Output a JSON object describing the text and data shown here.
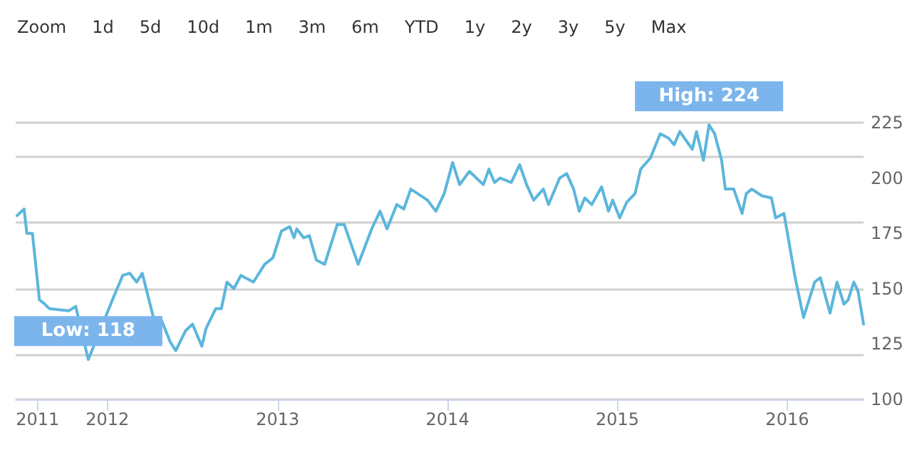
{
  "chart_data": {
    "type": "line",
    "annotations": [
      "Zoom",
      "1d",
      "5d",
      "10d",
      "1m",
      "3m",
      "6m",
      "YTD",
      "1y",
      "2y",
      "3y",
      "5y",
      "Max",
      {
        "text": "High: 224",
        "x": "2015-07-17",
        "y": 224
      },
      {
        "text": "Low: 118",
        "x": "2011-11-21",
        "y": 118
      }
    ],
    "x": [
      "2011-06-21",
      "2011-07-06",
      "2011-07-12",
      "2011-07-24",
      "2011-08-08",
      "2011-08-20",
      "2011-08-29",
      "2011-10-10",
      "2011-10-25",
      "2011-11-21",
      "2012-01-16",
      "2012-02-03",
      "2012-02-18",
      "2012-03-04",
      "2012-03-16",
      "2012-04-09",
      "2012-04-24",
      "2012-05-15",
      "2012-05-27",
      "2012-06-17",
      "2012-07-02",
      "2012-07-22",
      "2012-07-31",
      "2012-08-21",
      "2012-09-02",
      "2012-09-14",
      "2012-09-29",
      "2012-10-14",
      "2012-11-10",
      "2012-12-04",
      "2012-12-22",
      "2013-01-09",
      "2013-01-27",
      "2013-02-05",
      "2013-02-11",
      "2013-02-26",
      "2013-03-10",
      "2013-03-25",
      "2013-04-12",
      "2013-05-09",
      "2013-05-24",
      "2013-06-23",
      "2013-07-22",
      "2013-08-09",
      "2013-08-24",
      "2013-09-14",
      "2013-09-29",
      "2013-10-14",
      "2013-11-19",
      "2013-12-07",
      "2013-12-25",
      "2014-01-12",
      "2014-01-27",
      "2014-02-17",
      "2014-03-19",
      "2014-03-31",
      "2014-04-12",
      "2014-04-24",
      "2014-05-18",
      "2014-06-05",
      "2014-06-20",
      "2014-07-05",
      "2014-07-26",
      "2014-08-06",
      "2014-08-30",
      "2014-09-14",
      "2014-09-29",
      "2014-10-11",
      "2014-10-23",
      "2014-11-07",
      "2014-11-28",
      "2014-12-13",
      "2014-12-22",
      "2015-01-06",
      "2015-01-21",
      "2015-02-08",
      "2015-02-20",
      "2015-03-13",
      "2015-04-03",
      "2015-04-21",
      "2015-05-03",
      "2015-05-15",
      "2015-06-11",
      "2015-06-20",
      "2015-07-05",
      "2015-07-17",
      "2015-07-29",
      "2015-08-13",
      "2015-08-21",
      "2015-09-08",
      "2015-09-26",
      "2015-10-05",
      "2015-10-17",
      "2015-11-07",
      "2015-11-28",
      "2015-12-07",
      "2015-12-25",
      "2016-01-18",
      "2016-02-05",
      "2016-02-14",
      "2016-02-29",
      "2016-03-12",
      "2016-04-02",
      "2016-04-17",
      "2016-05-02",
      "2016-05-11",
      "2016-05-23",
      "2016-06-01",
      "2016-06-13"
    ],
    "series": [
      {
        "color": "#5bb6dc",
        "values": [
          183,
          186,
          175,
          175,
          145,
          143,
          141,
          140,
          142,
          118,
          147,
          156,
          157,
          153,
          157,
          137,
          137,
          126,
          122,
          131,
          134,
          124,
          132,
          141,
          141,
          153,
          150,
          156,
          153,
          161,
          164,
          176,
          178,
          173,
          177,
          173,
          174,
          163,
          161,
          179,
          179,
          161,
          177,
          185,
          177,
          188,
          186,
          195,
          190,
          185,
          193,
          207,
          197,
          203,
          197,
          204,
          198,
          200,
          198,
          206,
          197,
          190,
          195,
          188,
          200,
          202,
          195,
          185,
          191,
          188,
          196,
          185,
          190,
          182,
          189,
          193,
          204,
          209,
          220,
          218,
          215,
          221,
          213,
          221,
          208,
          224,
          220,
          208,
          195,
          195,
          184,
          193,
          195,
          192,
          191,
          182,
          184,
          155,
          137,
          143,
          153,
          155,
          139,
          153,
          143,
          145,
          153,
          149,
          134
        ]
      }
    ],
    "xlim": [
      "2011-06-18",
      "2016-06-13"
    ],
    "xticks": [
      {
        "value": "2011-08-04",
        "label": "2011"
      },
      {
        "value": "2012",
        "label": "2012"
      },
      {
        "value": "2013",
        "label": "2013"
      },
      {
        "value": "2014",
        "label": "2014"
      },
      {
        "value": "2015",
        "label": "2015"
      },
      {
        "value": "2016",
        "label": "2016"
      }
    ],
    "ylim": [
      100,
      225
    ],
    "yticks": [
      100,
      125,
      150,
      175,
      200,
      225
    ],
    "grid": "y",
    "marker": "none",
    "line_style": "solid"
  }
}
